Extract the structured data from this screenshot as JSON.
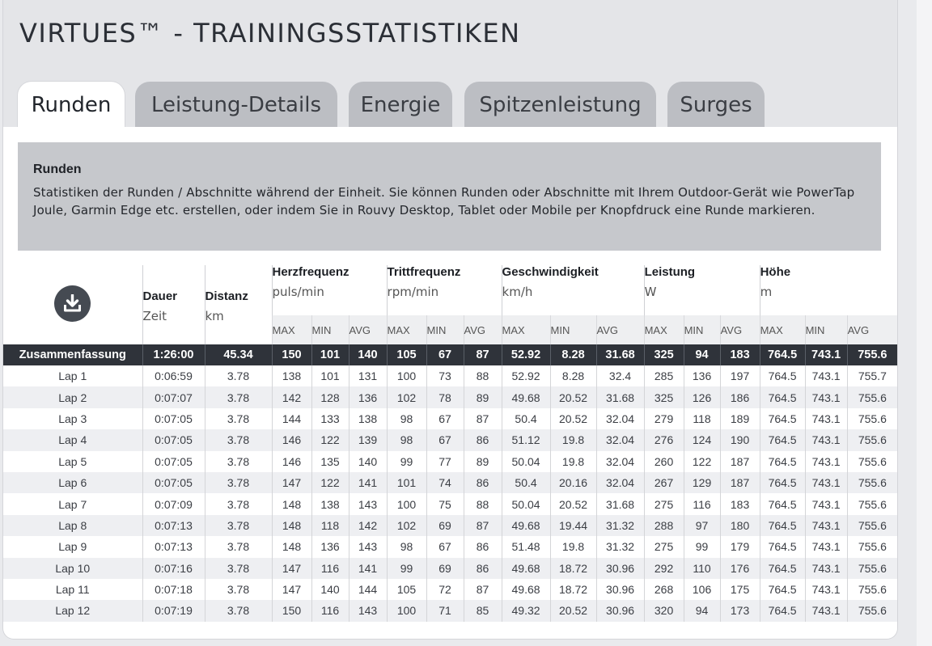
{
  "page_title": "VIRTUES™ - TRAININGSSTATISTIKEN",
  "tabs": [
    {
      "label": "Runden",
      "active": true
    },
    {
      "label": "Leistung-Details",
      "active": false
    },
    {
      "label": "Energie",
      "active": false
    },
    {
      "label": "Spitzenleistung",
      "active": false
    },
    {
      "label": "Surges",
      "active": false
    }
  ],
  "info": {
    "title": "Runden",
    "text": "Statistiken der Runden / Abschnitte während der Einheit. Sie können Runden oder Abschnitte mit Ihrem Outdoor-Gerät wie PowerTap Joule, Garmin Edge etc. erstellen, oder indem Sie in Rouvy Desktop, Tablet oder Mobile per Knopfdruck eine Runde markieren."
  },
  "download_icon": "download-tray-icon",
  "columns": {
    "dauer": {
      "label": "Dauer",
      "unit": "Zeit"
    },
    "distanz": {
      "label": "Distanz",
      "unit": "km"
    },
    "herz": {
      "label": "Herzfrequenz",
      "unit": "puls/min"
    },
    "tritt": {
      "label": "Trittfrequenz",
      "unit": "rpm/min"
    },
    "geschw": {
      "label": "Geschwindigkeit",
      "unit": "km/h"
    },
    "leistung": {
      "label": "Leistung",
      "unit": "W"
    },
    "hoehe": {
      "label": "Höhe",
      "unit": "m"
    }
  },
  "sub_headers": [
    "MAX",
    "MIN",
    "AVG",
    "MAX",
    "MIN",
    "AVG",
    "MAX",
    "MIN",
    "AVG",
    "MAX",
    "MIN",
    "AVG",
    "MAX",
    "MIN",
    "AVG"
  ],
  "summary": [
    "Zusammenfassung",
    "1:26:00",
    "45.34",
    "150",
    "101",
    "140",
    "105",
    "67",
    "87",
    "52.92",
    "8.28",
    "31.68",
    "325",
    "94",
    "183",
    "764.5",
    "743.1",
    "755.6"
  ],
  "laps": [
    [
      "Lap 1",
      "0:06:59",
      "3.78",
      "138",
      "101",
      "131",
      "100",
      "73",
      "88",
      "52.92",
      "8.28",
      "32.4",
      "285",
      "136",
      "197",
      "764.5",
      "743.1",
      "755.7"
    ],
    [
      "Lap 2",
      "0:07:07",
      "3.78",
      "142",
      "128",
      "136",
      "102",
      "78",
      "89",
      "49.68",
      "20.52",
      "31.68",
      "325",
      "126",
      "186",
      "764.5",
      "743.1",
      "755.6"
    ],
    [
      "Lap 3",
      "0:07:05",
      "3.78",
      "144",
      "133",
      "138",
      "98",
      "67",
      "87",
      "50.4",
      "20.52",
      "32.04",
      "279",
      "118",
      "189",
      "764.5",
      "743.1",
      "755.6"
    ],
    [
      "Lap 4",
      "0:07:05",
      "3.78",
      "146",
      "122",
      "139",
      "98",
      "67",
      "86",
      "51.12",
      "19.8",
      "32.04",
      "276",
      "124",
      "190",
      "764.5",
      "743.1",
      "755.6"
    ],
    [
      "Lap 5",
      "0:07:05",
      "3.78",
      "146",
      "135",
      "140",
      "99",
      "77",
      "89",
      "50.04",
      "19.8",
      "32.04",
      "260",
      "122",
      "187",
      "764.5",
      "743.1",
      "755.6"
    ],
    [
      "Lap 6",
      "0:07:05",
      "3.78",
      "147",
      "122",
      "141",
      "101",
      "74",
      "86",
      "50.4",
      "20.16",
      "32.04",
      "267",
      "129",
      "187",
      "764.5",
      "743.1",
      "755.6"
    ],
    [
      "Lap 7",
      "0:07:09",
      "3.78",
      "148",
      "138",
      "143",
      "100",
      "75",
      "88",
      "50.04",
      "20.52",
      "31.68",
      "275",
      "116",
      "183",
      "764.5",
      "743.1",
      "755.6"
    ],
    [
      "Lap 8",
      "0:07:13",
      "3.78",
      "148",
      "118",
      "142",
      "102",
      "69",
      "87",
      "49.68",
      "19.44",
      "31.32",
      "288",
      "97",
      "180",
      "764.5",
      "743.1",
      "755.6"
    ],
    [
      "Lap 9",
      "0:07:13",
      "3.78",
      "148",
      "136",
      "143",
      "98",
      "67",
      "86",
      "51.48",
      "19.8",
      "31.32",
      "275",
      "99",
      "179",
      "764.5",
      "743.1",
      "755.6"
    ],
    [
      "Lap 10",
      "0:07:16",
      "3.78",
      "147",
      "116",
      "141",
      "99",
      "69",
      "86",
      "49.68",
      "18.72",
      "30.96",
      "292",
      "110",
      "176",
      "764.5",
      "743.1",
      "755.6"
    ],
    [
      "Lap 11",
      "0:07:18",
      "3.78",
      "147",
      "140",
      "144",
      "105",
      "72",
      "87",
      "49.68",
      "18.72",
      "30.96",
      "268",
      "106",
      "175",
      "764.5",
      "743.1",
      "755.6"
    ],
    [
      "Lap 12",
      "0:07:19",
      "3.78",
      "150",
      "116",
      "143",
      "100",
      "71",
      "85",
      "49.32",
      "20.52",
      "30.96",
      "320",
      "94",
      "173",
      "764.5",
      "743.1",
      "755.6"
    ]
  ]
}
